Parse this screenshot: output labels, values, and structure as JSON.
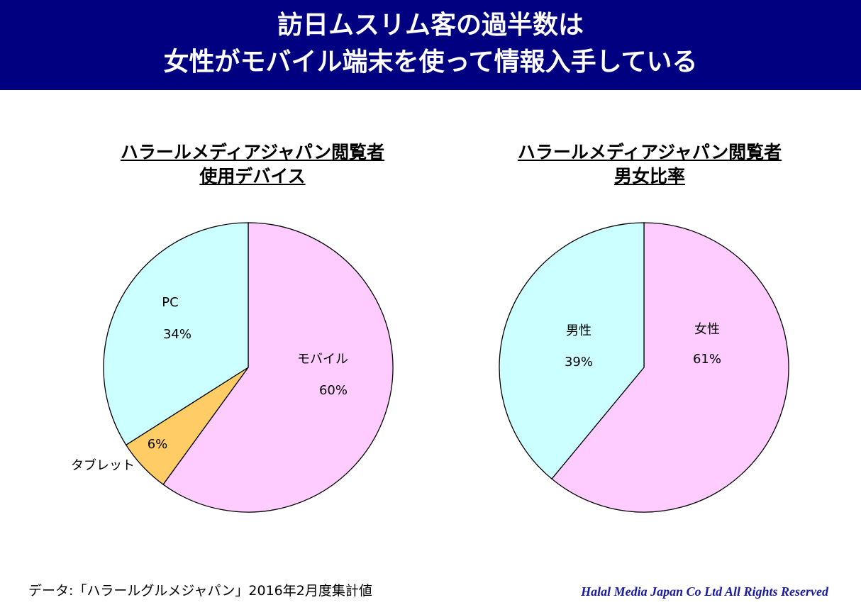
{
  "header": {
    "line1": "訪日ムスリム客の過半数は",
    "line2": "女性がモバイル端末を使って情報入手している"
  },
  "chart_data": [
    {
      "type": "pie",
      "title_line1": "ハラールメディアジャパン閲覧者",
      "title_line2": "使用デバイス",
      "slices": [
        {
          "label": "モバイル",
          "value": 60,
          "value_label": "60%",
          "color": "#FFCCFF"
        },
        {
          "label": "タブレット",
          "value": 6,
          "value_label": "6%",
          "color": "#FFCC66"
        },
        {
          "label": "PC",
          "value": 34,
          "value_label": "34%",
          "color": "#CCFFFF"
        }
      ]
    },
    {
      "type": "pie",
      "title_line1": "ハラールメディアジャパン閲覧者",
      "title_line2": "男女比率",
      "slices": [
        {
          "label": "女性",
          "value": 61,
          "value_label": "61%",
          "color": "#FFCCFF"
        },
        {
          "label": "男性",
          "value": 39,
          "value_label": "39%",
          "color": "#CCFFFF"
        }
      ]
    }
  ],
  "footer": {
    "source": "データ:「ハラールグルメジャパン」2016年2月度集計値",
    "copyright": "Halal Media Japan Co Ltd All Rights Reserved"
  }
}
